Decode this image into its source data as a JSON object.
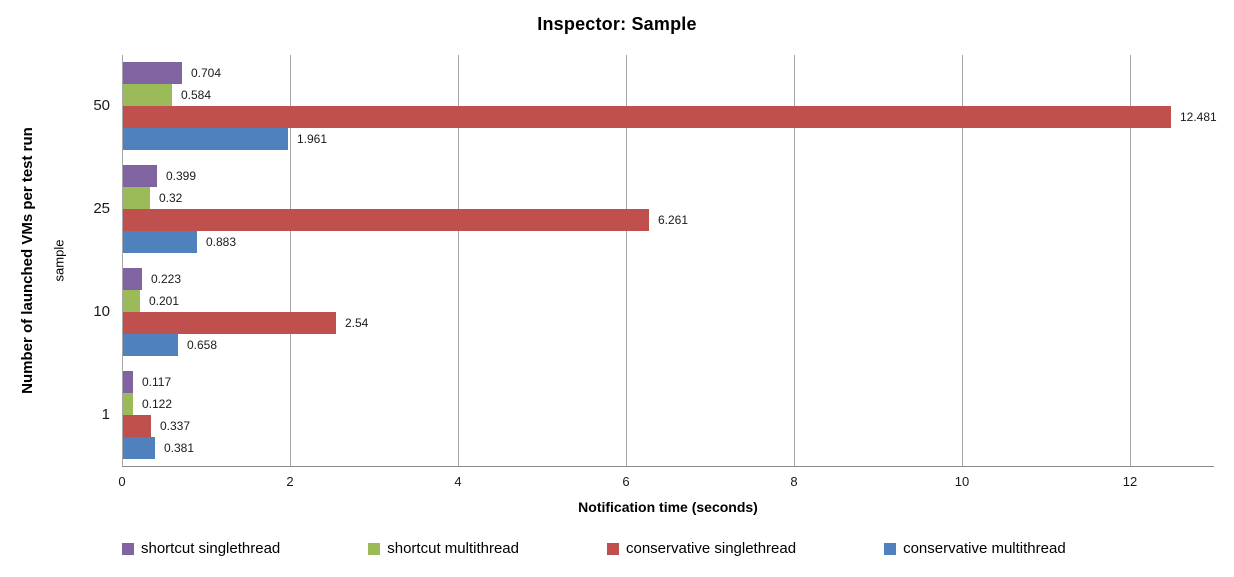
{
  "chart_data": {
    "type": "bar",
    "orientation": "horizontal",
    "title": "Inspector: Sample",
    "xlabel": "Notification time (seconds)",
    "ylabel_outer": "Number of launched VMs per test run",
    "ylabel_inner": "sample",
    "categories": [
      "50",
      "25",
      "10",
      "1"
    ],
    "series": [
      {
        "name": "shortcut singlethread",
        "color": "#8064A2",
        "values": [
          0.704,
          0.399,
          0.223,
          0.117
        ],
        "labels": [
          "0.704",
          "0.399",
          "0.223",
          "0.117"
        ]
      },
      {
        "name": "shortcut multithread",
        "color": "#9BBB59",
        "values": [
          0.584,
          0.32,
          0.201,
          0.122
        ],
        "labels": [
          "0.584",
          "0.32",
          "0.201",
          "0.122"
        ]
      },
      {
        "name": "conservative singlethread",
        "color": "#C0504D",
        "values": [
          12.481,
          6.261,
          2.54,
          0.337
        ],
        "labels": [
          "12.481",
          "6.261",
          "2.54",
          "0.337"
        ]
      },
      {
        "name": "conservative multithread",
        "color": "#4F81BD",
        "values": [
          1.961,
          0.883,
          0.658,
          0.381
        ],
        "labels": [
          "1.961",
          "0.883",
          "0.658",
          "0.381"
        ]
      }
    ],
    "x_ticks": [
      "0",
      "2",
      "4",
      "6",
      "8",
      "10",
      "12"
    ],
    "xlim": [
      0,
      13
    ],
    "grid": "vertical",
    "legend_position": "bottom"
  },
  "style_colors": {
    "gridline": "#A6A6A6",
    "axis_line": "#898989",
    "label_text": "#1A1A1A"
  }
}
